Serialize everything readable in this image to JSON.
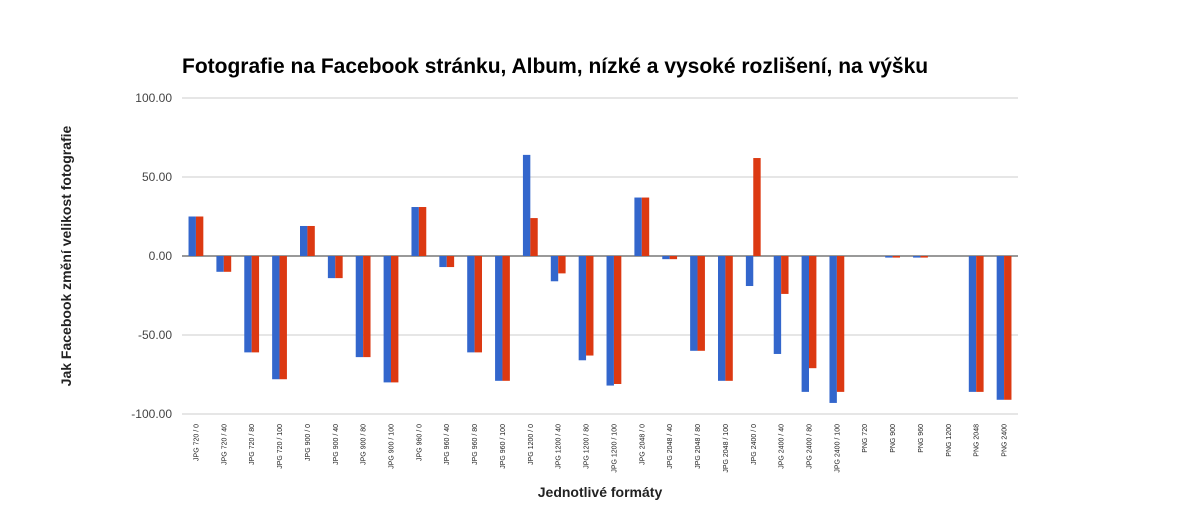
{
  "chart_data": {
    "type": "bar",
    "title": "Fotografie na Facebook stránku, Album, nízké a vysoké rozlišení, na výšku",
    "xlabel": "Jednotlivé formáty",
    "ylabel": "Jak Facebook změní velikost fotografie",
    "ylim": [
      -100,
      100
    ],
    "yticks": [
      "100.00",
      "50.00",
      "0.00",
      "-50.00",
      "-100.00"
    ],
    "ytick_values": [
      100,
      50,
      0,
      -50,
      -100
    ],
    "grid": true,
    "legend": "none",
    "categories": [
      "JPG 720 / 0",
      "JPG 720 / 40",
      "JPG 720 / 80",
      "JPG 720 / 100",
      "JPG 900 / 0",
      "JPG 900 / 40",
      "JPG 900 / 80",
      "JPG 900 / 100",
      "JPG 960 / 0",
      "JPG 960 / 40",
      "JPG 960 / 80",
      "JPG 960 / 100",
      "JPG 1200 / 0",
      "JPG 1200 / 40",
      "JPG 1200 / 80",
      "JPG 1200 / 100",
      "JPG 2048 / 0",
      "JPG 2048 / 40",
      "JPG 2048 / 80",
      "JPG 2048 / 100",
      "JPG 2400 / 0",
      "JPG 2400 / 40",
      "JPG 2400 / 80",
      "JPG 2400 / 100",
      "PNG 720",
      "PNG 900",
      "PNG 960",
      "PNG 1200",
      "PNG 2048",
      "PNG 2400"
    ],
    "series": [
      {
        "color": "#3366cc",
        "values": [
          25,
          -10,
          -61,
          -78,
          19,
          -14,
          -64,
          -80,
          31,
          -7,
          -61,
          -79,
          64,
          -16,
          -66,
          -82,
          37,
          -2,
          -60,
          -79,
          -19,
          -62,
          -86,
          -93,
          0,
          -1,
          -1,
          0,
          -86,
          -91
        ]
      },
      {
        "color": "#dc3912",
        "values": [
          25,
          -10,
          -61,
          -78,
          19,
          -14,
          -64,
          -80,
          31,
          -7,
          -61,
          -79,
          24,
          -11,
          -63,
          -81,
          37,
          -2,
          -60,
          -79,
          62,
          -24,
          -71,
          -86,
          0,
          -1,
          -1,
          0,
          -86,
          -91
        ]
      }
    ]
  }
}
